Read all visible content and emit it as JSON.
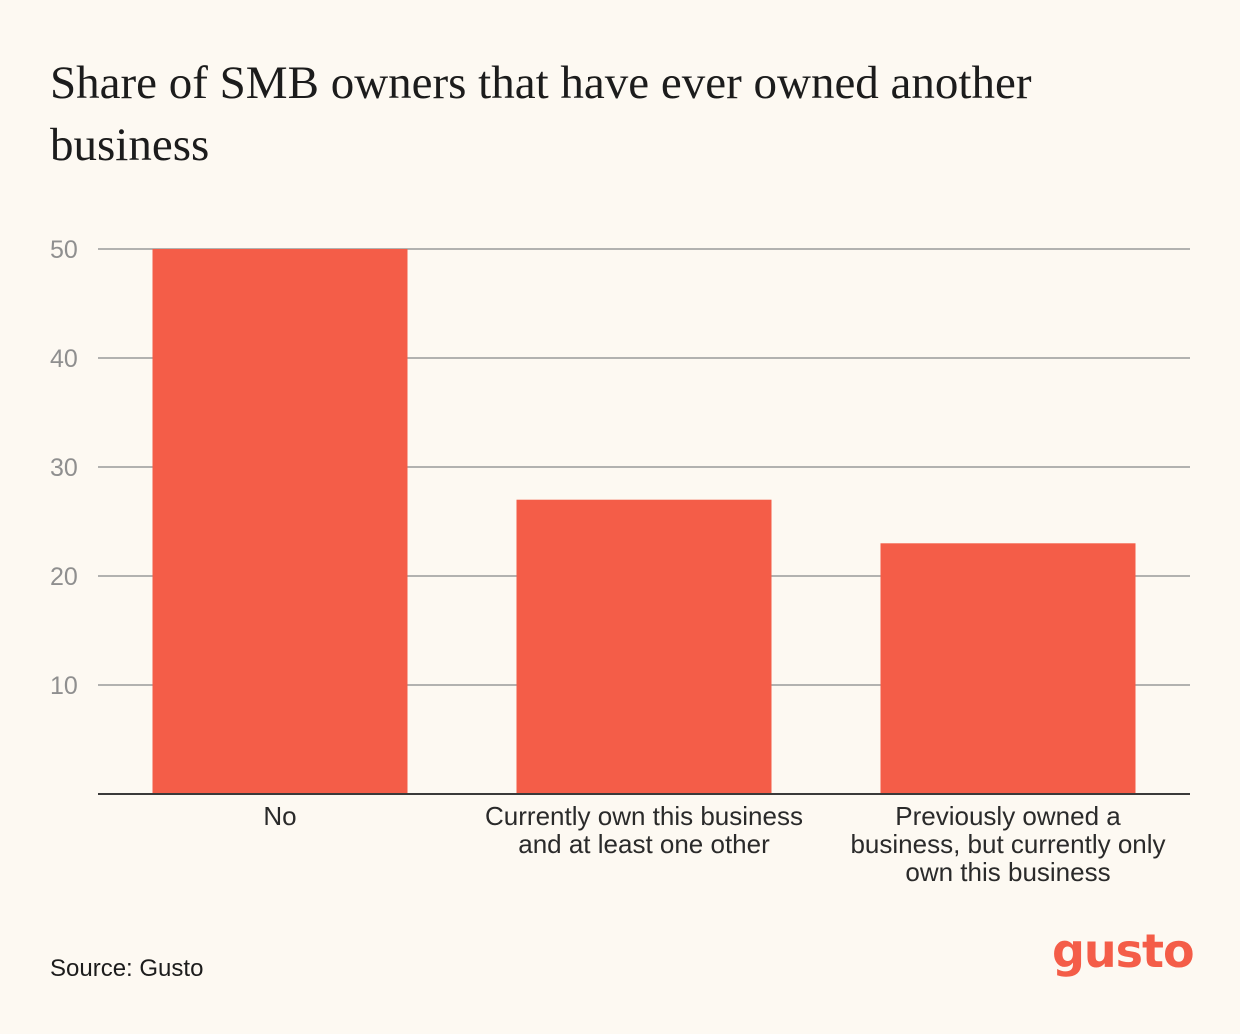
{
  "chart_data": {
    "type": "bar",
    "title": "Share of SMB owners that have ever owned another business",
    "categories": [
      "No",
      "Currently own this business and at least one other",
      "Previously owned a business, but currently only own this business"
    ],
    "values": [
      50,
      27,
      23
    ],
    "ylim": [
      0,
      50
    ],
    "yticks": [
      10,
      20,
      30,
      40,
      50
    ],
    "xlabel": "",
    "ylabel": "",
    "grid": true,
    "bar_color": "#f45d48"
  },
  "source": "Source: Gusto",
  "logo": "gusto",
  "colors": {
    "background": "#fdf9f2",
    "bar": "#f45d48",
    "grid": "#9a9a9a",
    "tick_text": "#8f8f8f"
  }
}
